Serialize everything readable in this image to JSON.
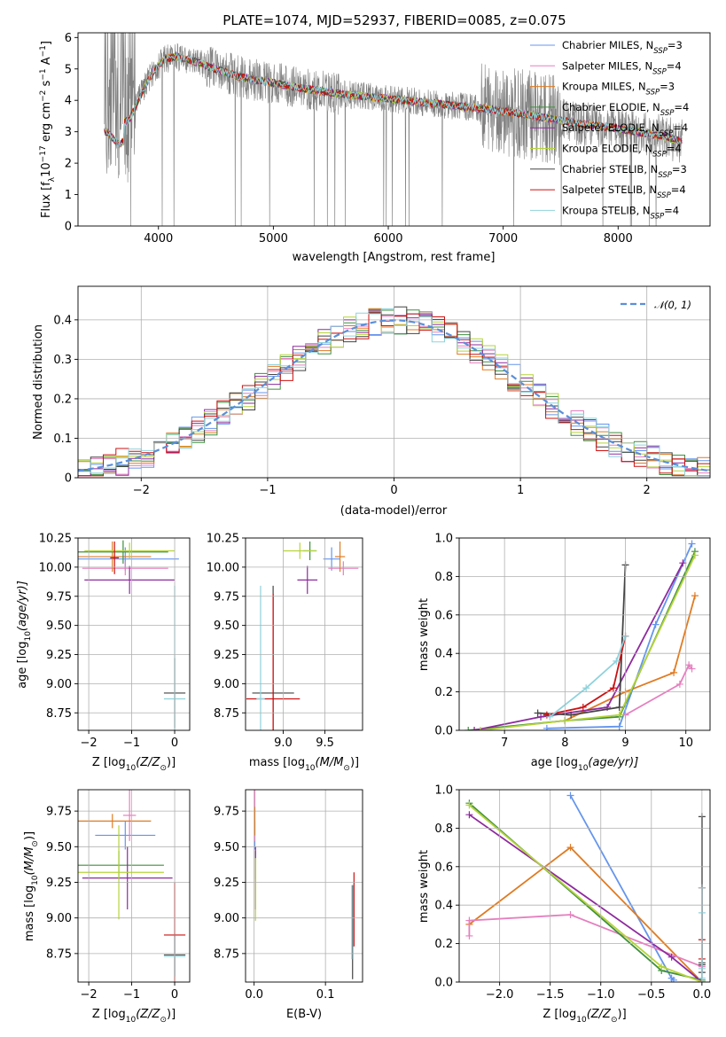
{
  "figure": {
    "title": "PLATE=1074, MJD=52937, FIBERID=0085, z=0.075"
  },
  "series": [
    {
      "key": "chab_miles",
      "label": "Chabrier MILES, N",
      "sub": "SSP",
      "eq": "=3",
      "color": "#6495ed"
    },
    {
      "key": "salp_miles",
      "label": "Salpeter MILES, N",
      "sub": "SSP",
      "eq": "=4",
      "color": "#e57fbf"
    },
    {
      "key": "krou_miles",
      "label": "Kroupa MILES, N",
      "sub": "SSP",
      "eq": "=3",
      "color": "#e07b22"
    },
    {
      "key": "chab_elodie",
      "label": "Chabrier ELODIE, N",
      "sub": "SSP",
      "eq": "=4",
      "color": "#3f8f3f"
    },
    {
      "key": "salp_elodie",
      "label": "Salpeter ELODIE, N",
      "sub": "SSP",
      "eq": "=4",
      "color": "#8e2a9e"
    },
    {
      "key": "krou_elodie",
      "label": "Kroupa ELODIE, N",
      "sub": "SSP",
      "eq": "=4",
      "color": "#b5d43a"
    },
    {
      "key": "chab_stelib",
      "label": "Chabrier STELIB, N",
      "sub": "SSP",
      "eq": "=3",
      "color": "#444444"
    },
    {
      "key": "salp_stelib",
      "label": "Salpeter STELIB, N",
      "sub": "SSP",
      "eq": "=4",
      "color": "#cc1111"
    },
    {
      "key": "krou_stelib",
      "label": "Kroupa STELIB, N",
      "sub": "SSP",
      "eq": "=4",
      "color": "#8fd2dc"
    }
  ],
  "chart_data": [
    {
      "id": "spectrum",
      "type": "line",
      "xlabel": "wavelength [Angstrom, rest frame]",
      "ylabel_parts": [
        "Flux [f",
        "λ",
        "10",
        "−17",
        " erg cm",
        "−2",
        " s",
        "−1",
        " A",
        "−1",
        "]"
      ],
      "xlim": [
        3300,
        8800
      ],
      "ylim": [
        0,
        6.15
      ],
      "xticks": [
        4000,
        5000,
        6000,
        7000,
        8000
      ],
      "yticks": [
        0,
        1,
        2,
        3,
        4,
        5,
        6
      ],
      "data_color": "#808080",
      "continuum": {
        "x": [
          3550,
          3650,
          3750,
          3850,
          3950,
          4050,
          4150,
          4300,
          4500,
          4700,
          5000,
          5300,
          5600,
          6000,
          6400,
          6800,
          7200,
          7600,
          8000,
          8400,
          8550
        ],
        "y": [
          3.6,
          3.2,
          3.4,
          4.2,
          4.9,
          5.3,
          5.4,
          5.25,
          5.0,
          4.75,
          4.55,
          4.35,
          4.2,
          4.05,
          3.9,
          3.75,
          3.55,
          3.3,
          3.1,
          2.85,
          2.7
        ]
      }
    },
    {
      "id": "residuals",
      "type": "histogram",
      "xlabel": "(data-model)/error",
      "ylabel": "Normed distribution",
      "xlim": [
        -2.5,
        2.5
      ],
      "ylim": [
        0,
        0.485
      ],
      "xticks": [
        -2,
        -1,
        0,
        1,
        2
      ],
      "yticks": [
        0,
        0.1,
        0.2,
        0.3,
        0.4
      ],
      "gaussian_label": "𝒩(0, 1)",
      "gaussian_color": "#5b8fd9",
      "bin_width": 0.1
    },
    {
      "id": "age_vs_Z",
      "type": "scatter",
      "xlabel_parts": [
        "Z [log",
        "10",
        "(Z/Z",
        "⊙",
        ")]"
      ],
      "ylabel_parts": [
        "age  [log",
        "10",
        "(age/yr)]"
      ],
      "xlim": [
        -2.25,
        0.35
      ],
      "ylim": [
        8.6,
        10.25
      ],
      "xticks": [
        -2,
        -1,
        0
      ],
      "yticks": [
        8.75,
        9.0,
        9.25,
        9.5,
        9.75,
        10.0,
        10.25
      ],
      "ytick_labels": [
        "8.75",
        "9.00",
        "9.25",
        "9.50",
        "9.75",
        "10.00",
        "10.25"
      ],
      "points": [
        {
          "s": "chab_miles",
          "x": -1.15,
          "y": 10.07,
          "xerr": 1.25,
          "yerr": 0.1
        },
        {
          "s": "salp_miles",
          "x": -1.15,
          "y": 9.99,
          "xerr": 1.0,
          "yerr": 0.06
        },
        {
          "s": "krou_miles",
          "x": -1.45,
          "y": 10.09,
          "xerr": 0.9,
          "yerr": 0.13
        },
        {
          "s": "chab_elodie",
          "x": -1.2,
          "y": 10.13,
          "xerr": 1.05,
          "yerr": 0.1
        },
        {
          "s": "salp_elodie",
          "x": -1.05,
          "y": 9.89,
          "xerr": 1.05,
          "yerr": 0.12
        },
        {
          "s": "krou_elodie",
          "x": -1.05,
          "y": 10.14,
          "xerr": 1.05,
          "yerr": 0.07
        },
        {
          "s": "chab_stelib",
          "x": 0.0,
          "y": 8.92,
          "xerr": 0.25,
          "yerr": 0.3
        },
        {
          "s": "salp_stelib",
          "x": -1.4,
          "y": 10.08,
          "xerr": 0.1,
          "yerr": 0.14
        },
        {
          "s": "krou_stelib",
          "x": 0.0,
          "y": 8.87,
          "xerr": 0.25,
          "yerr": 0.97
        }
      ]
    },
    {
      "id": "age_vs_mass",
      "type": "scatter",
      "xlabel_parts": [
        "mass [log",
        "10",
        "(M/M",
        "⊙",
        ")]"
      ],
      "xlim": [
        8.55,
        9.95
      ],
      "ylim": [
        8.6,
        10.25
      ],
      "xticks": [
        9.0,
        9.5
      ],
      "xtick_labels": [
        "9.0",
        "9.5"
      ],
      "yticks": [
        8.75,
        9.0,
        9.25,
        9.5,
        9.75,
        10.0,
        10.25
      ],
      "ytick_labels": [
        "8.75",
        "9.00",
        "9.25",
        "9.50",
        "9.75",
        "10.00",
        "10.25"
      ],
      "points": [
        {
          "s": "chab_miles",
          "x": 9.58,
          "y": 10.07,
          "xerr": 0.1,
          "yerr": 0.1
        },
        {
          "s": "salp_miles",
          "x": 9.72,
          "y": 9.99,
          "xerr": 0.18,
          "yerr": 0.06
        },
        {
          "s": "krou_miles",
          "x": 9.68,
          "y": 10.09,
          "xerr": 0.06,
          "yerr": 0.13
        },
        {
          "s": "chab_elodie",
          "x": 9.32,
          "y": 10.14,
          "xerr": 0.08,
          "yerr": 0.08
        },
        {
          "s": "salp_elodie",
          "x": 9.29,
          "y": 9.89,
          "xerr": 0.12,
          "yerr": 0.12
        },
        {
          "s": "krou_elodie",
          "x": 9.2,
          "y": 10.14,
          "xerr": 0.2,
          "yerr": 0.07
        },
        {
          "s": "chab_stelib",
          "x": 8.88,
          "y": 8.92,
          "xerr": 0.25,
          "yerr": 0.92
        },
        {
          "s": "salp_stelib",
          "x": 8.88,
          "y": 8.87,
          "xerr": 0.32,
          "yerr": 0.9
        },
        {
          "s": "krou_stelib",
          "x": 8.73,
          "y": 8.87,
          "xerr": 0.05,
          "yerr": 0.97
        }
      ]
    },
    {
      "id": "mass_weight_vs_age",
      "type": "line",
      "xlabel_parts": [
        "age  [log",
        "10",
        "(age/yr)]"
      ],
      "ylabel": "mass weight",
      "xlim": [
        6.25,
        10.4
      ],
      "ylim": [
        0,
        1.0
      ],
      "xticks": [
        7,
        8,
        9,
        10
      ],
      "yticks": [
        0,
        0.2,
        0.4,
        0.6,
        0.8,
        1.0
      ],
      "ytick_labels": [
        "0.0",
        "0.2",
        "0.4",
        "0.6",
        "0.8",
        "1.0"
      ],
      "series": [
        {
          "s": "krou_miles",
          "x": [
            6.5,
            8.0,
            9.0,
            9.8,
            10.15
          ],
          "y": [
            0.0,
            0.05,
            0.2,
            0.3,
            0.7
          ]
        },
        {
          "s": "chab_miles",
          "x": [
            7.7,
            8.9,
            9.5,
            10.1
          ],
          "y": [
            0.01,
            0.02,
            0.55,
            0.97
          ]
        },
        {
          "s": "salp_miles",
          "x": [
            9.0,
            9.9,
            10.05,
            10.1
          ],
          "y": [
            0.08,
            0.24,
            0.34,
            0.32
          ]
        },
        {
          "s": "chab_elodie",
          "x": [
            6.4,
            8.0,
            8.9,
            10.15
          ],
          "y": [
            0.0,
            0.05,
            0.07,
            0.93
          ]
        },
        {
          "s": "salp_elodie",
          "x": [
            6.5,
            7.6,
            8.7,
            9.95
          ],
          "y": [
            0.0,
            0.07,
            0.12,
            0.87
          ]
        },
        {
          "s": "krou_elodie",
          "x": [
            6.6,
            8.0,
            8.9,
            10.15
          ],
          "y": [
            0.0,
            0.05,
            0.08,
            0.91
          ]
        },
        {
          "s": "chab_stelib",
          "x": [
            7.55,
            8.1,
            8.9,
            9.0
          ],
          "y": [
            0.09,
            0.08,
            0.12,
            0.86
          ]
        },
        {
          "s": "salp_stelib",
          "x": [
            7.7,
            8.3,
            8.8,
            9.0
          ],
          "y": [
            0.08,
            0.12,
            0.22,
            0.49
          ]
        },
        {
          "s": "krou_stelib",
          "x": [
            7.75,
            8.35,
            8.85,
            9.0
          ],
          "y": [
            0.07,
            0.22,
            0.36,
            0.49
          ]
        }
      ]
    },
    {
      "id": "mass_vs_Z",
      "type": "scatter",
      "xlabel_parts": [
        "Z [log",
        "10",
        "(Z/Z",
        "⊙",
        ")]"
      ],
      "ylabel_parts": [
        "mass [log",
        "10",
        "(M/M",
        "⊙",
        ")]"
      ],
      "xlim": [
        -2.25,
        0.35
      ],
      "ylim": [
        8.55,
        9.9
      ],
      "xticks": [
        -2,
        -1,
        0
      ],
      "yticks": [
        8.75,
        9.0,
        9.25,
        9.5,
        9.75
      ],
      "ytick_labels": [
        "8.75",
        "9.00",
        "9.25",
        "9.50",
        "9.75"
      ],
      "points": [
        {
          "s": "chab_miles",
          "x": -1.15,
          "y": 9.58,
          "xerr": 0.7,
          "yerr": 0.1
        },
        {
          "s": "salp_miles",
          "x": -1.05,
          "y": 9.72,
          "xerr": 0.15,
          "yerr": 0.18
        },
        {
          "s": "krou_miles",
          "x": -1.45,
          "y": 9.68,
          "xerr": 0.9,
          "yerr": 0.05
        },
        {
          "s": "chab_elodie",
          "x": -1.3,
          "y": 9.37,
          "xerr": 1.05,
          "yerr": 0.1
        },
        {
          "s": "salp_elodie",
          "x": -1.1,
          "y": 9.28,
          "xerr": 1.05,
          "yerr": 0.22
        },
        {
          "s": "krou_elodie",
          "x": -1.3,
          "y": 9.32,
          "xerr": 1.05,
          "yerr": 0.33
        },
        {
          "s": "chab_stelib",
          "x": 0.0,
          "y": 8.74,
          "xerr": 0.25,
          "yerr": 0.15
        },
        {
          "s": "salp_stelib",
          "x": 0.0,
          "y": 8.88,
          "xerr": 0.25,
          "yerr": 0.37
        },
        {
          "s": "krou_stelib",
          "x": 0.0,
          "y": 8.73,
          "xerr": 0.25,
          "yerr": 0.14
        }
      ]
    },
    {
      "id": "mass_vs_ebv",
      "type": "scatter",
      "xlabel": "E(B-V)",
      "xlim": [
        -0.012,
        0.152
      ],
      "ylim": [
        8.55,
        9.9
      ],
      "xticks": [
        0.0,
        0.1
      ],
      "xtick_labels": [
        "0.0",
        "0.1"
      ],
      "yticks": [
        8.75,
        9.0,
        9.25,
        9.5,
        9.75
      ],
      "ytick_labels": [
        "8.75",
        "9.00",
        "9.25",
        "9.50",
        "9.75"
      ],
      "points": [
        {
          "s": "chab_miles",
          "x": 0.001,
          "y": 9.58,
          "xerr": 0.0,
          "yerr": 0.1
        },
        {
          "s": "salp_miles",
          "x": 0.001,
          "y": 9.72,
          "xerr": 0.0,
          "yerr": 0.18
        },
        {
          "s": "krou_miles",
          "x": 0.001,
          "y": 9.68,
          "xerr": 0.0,
          "yerr": 0.1
        },
        {
          "s": "chab_elodie",
          "x": 0.002,
          "y": 9.37,
          "xerr": 0.0,
          "yerr": 0.1
        },
        {
          "s": "salp_elodie",
          "x": 0.002,
          "y": 9.28,
          "xerr": 0.0,
          "yerr": 0.22
        },
        {
          "s": "krou_elodie",
          "x": 0.002,
          "y": 9.2,
          "xerr": 0.0,
          "yerr": 0.22
        },
        {
          "s": "chab_stelib",
          "x": 0.138,
          "y": 8.9,
          "xerr": 0.0,
          "yerr": 0.33
        },
        {
          "s": "salp_stelib",
          "x": 0.14,
          "y": 9.06,
          "xerr": 0.0,
          "yerr": 0.26
        },
        {
          "s": "krou_stelib",
          "x": 0.137,
          "y": 8.97,
          "xerr": 0.0,
          "yerr": 0.26
        }
      ]
    },
    {
      "id": "mass_weight_vs_Z",
      "type": "line",
      "xlabel_parts": [
        "Z [log",
        "10",
        "(Z/Z",
        "⊙",
        ")]"
      ],
      "ylabel": "mass weight",
      "xlim": [
        -2.4,
        0.08
      ],
      "ylim": [
        0,
        1.0
      ],
      "xticks": [
        -2.0,
        -1.5,
        -1.0,
        -0.5,
        0.0
      ],
      "xtick_labels": [
        "−2.0",
        "−1.5",
        "−1.0",
        "−0.5",
        "0.0"
      ],
      "yticks": [
        0,
        0.2,
        0.4,
        0.6,
        0.8,
        1.0
      ],
      "ytick_labels": [
        "0.0",
        "0.2",
        "0.4",
        "0.6",
        "0.8",
        "1.0"
      ],
      "series": [
        {
          "s": "chab_miles",
          "x": [
            -1.3,
            -0.3,
            -0.28
          ],
          "y": [
            0.97,
            0.02,
            0.01
          ]
        },
        {
          "s": "krou_miles",
          "x": [
            -2.3,
            -1.3,
            0.0
          ],
          "y": [
            0.3,
            0.7,
            0.0
          ]
        },
        {
          "s": "salp_miles",
          "x": [
            -2.3,
            -2.3,
            -1.3,
            0.0
          ],
          "y": [
            0.24,
            0.32,
            0.35,
            0.08
          ]
        },
        {
          "s": "chab_elodie",
          "x": [
            -2.3,
            -0.4,
            0.0
          ],
          "y": [
            0.93,
            0.06,
            0.01
          ]
        },
        {
          "s": "salp_elodie",
          "x": [
            -2.3,
            -0.3,
            0.0
          ],
          "y": [
            0.87,
            0.13,
            0.0
          ]
        },
        {
          "s": "krou_elodie",
          "x": [
            -2.3,
            -0.4,
            0.0
          ],
          "y": [
            0.92,
            0.08,
            0.0
          ]
        },
        {
          "s": "chab_stelib",
          "x": [
            0.0,
            0.0,
            0.0,
            0.0
          ],
          "y": [
            0.86,
            0.1,
            0.09,
            0.05
          ]
        },
        {
          "s": "salp_stelib",
          "x": [
            0.0,
            0.0,
            0.0
          ],
          "y": [
            0.12,
            0.22,
            0.49
          ]
        },
        {
          "s": "krou_stelib",
          "x": [
            0.0,
            0.0,
            0.0,
            0.0
          ],
          "y": [
            0.49,
            0.36,
            0.07,
            0.02
          ]
        }
      ]
    }
  ]
}
